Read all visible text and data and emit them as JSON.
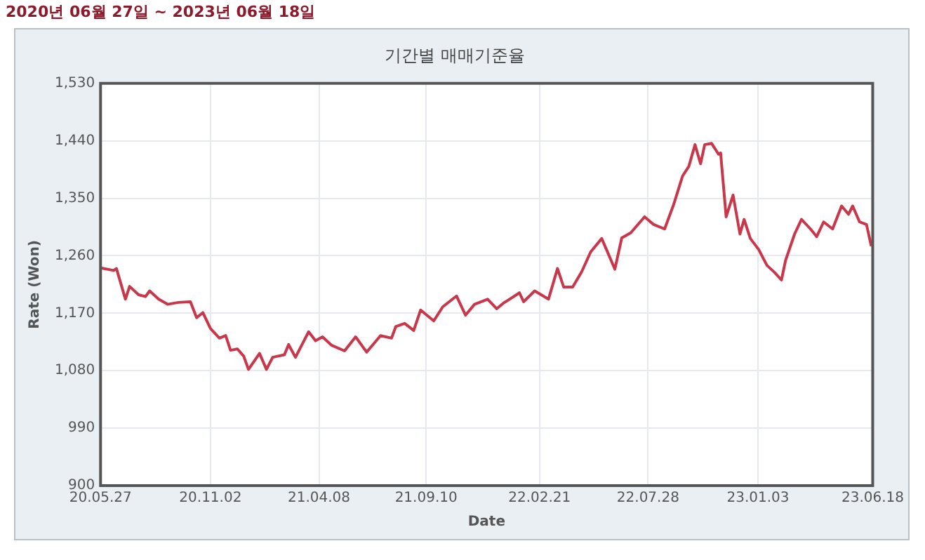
{
  "chart_data": {
    "type": "line",
    "title": "기간별 매매기준율",
    "subtitle": "2020년 06월 27일 ~ 2023년 06월 18일",
    "xlabel": "Date",
    "ylabel": "Rate (Won)",
    "xlim": [
      "2020-05-27",
      "2023-06-18"
    ],
    "xticks": [
      {
        "value": "2020-05-27",
        "label": "20.05.27"
      },
      {
        "value": "2020-11-02",
        "label": "20.11.02"
      },
      {
        "value": "2021-04-08",
        "label": "21.04.08"
      },
      {
        "value": "2021-09-10",
        "label": "21.09.10"
      },
      {
        "value": "2022-02-21",
        "label": "22.02.21"
      },
      {
        "value": "2022-07-28",
        "label": "22.07.28"
      },
      {
        "value": "2023-01-03",
        "label": "23.01.03"
      },
      {
        "value": "2023-06-18",
        "label": "23.06.18"
      }
    ],
    "ylim": [
      900,
      1530
    ],
    "yticks": [
      {
        "value": 900,
        "label": "900"
      },
      {
        "value": 990,
        "label": "990"
      },
      {
        "value": 1080,
        "label": "1,080"
      },
      {
        "value": 1170,
        "label": "1,170"
      },
      {
        "value": 1260,
        "label": "1,260"
      },
      {
        "value": 1350,
        "label": "1,350"
      },
      {
        "value": 1440,
        "label": "1,440"
      },
      {
        "value": 1530,
        "label": "1,530"
      }
    ],
    "grid": true,
    "marker": "none",
    "line_style": "solid",
    "series": [
      {
        "color": "#c8374a",
        "x": [
          "2020-05-27",
          "2020-06-15",
          "2020-06-19",
          "2020-07-02",
          "2020-07-08",
          "2020-07-21",
          "2020-07-31",
          "2020-08-06",
          "2020-08-19",
          "2020-09-01",
          "2020-09-17",
          "2020-10-04",
          "2020-10-13",
          "2020-10-22",
          "2020-11-02",
          "2020-11-15",
          "2020-11-24",
          "2020-12-01",
          "2020-12-11",
          "2020-12-20",
          "2020-12-27",
          "2021-01-12",
          "2021-01-22",
          "2021-01-31",
          "2021-02-17",
          "2021-02-23",
          "2021-03-05",
          "2021-03-14",
          "2021-03-24",
          "2021-04-03",
          "2021-04-13",
          "2021-04-26",
          "2021-05-15",
          "2021-05-31",
          "2021-06-16",
          "2021-07-06",
          "2021-07-22",
          "2021-07-28",
          "2021-08-10",
          "2021-08-23",
          "2021-09-02",
          "2021-09-21",
          "2021-10-04",
          "2021-10-24",
          "2021-11-06",
          "2021-11-19",
          "2021-12-08",
          "2021-12-21",
          "2021-12-31",
          "2022-01-06",
          "2022-01-23",
          "2022-01-29",
          "2022-02-14",
          "2022-03-06",
          "2022-03-19",
          "2022-03-28",
          "2022-04-10",
          "2022-04-23",
          "2022-05-06",
          "2022-05-22",
          "2022-06-10",
          "2022-06-20",
          "2022-07-03",
          "2022-07-23",
          "2022-08-05",
          "2022-08-21",
          "2022-09-03",
          "2022-09-16",
          "2022-09-25",
          "2022-10-04",
          "2022-10-12",
          "2022-10-18",
          "2022-10-28",
          "2022-11-07",
          "2022-11-10",
          "2022-11-18",
          "2022-11-28",
          "2022-12-08",
          "2022-12-14",
          "2022-12-23",
          "2023-01-04",
          "2023-01-16",
          "2023-01-27",
          "2023-02-06",
          "2023-02-12",
          "2023-02-25",
          "2023-03-07",
          "2023-03-20",
          "2023-03-29",
          "2023-04-08",
          "2023-04-21",
          "2023-05-04",
          "2023-05-14",
          "2023-05-20",
          "2023-05-30",
          "2023-06-09",
          "2023-06-16"
        ],
        "values": [
          1241,
          1237,
          1240,
          1192,
          1212,
          1199,
          1196,
          1205,
          1192,
          1184,
          1187,
          1188,
          1163,
          1171,
          1146,
          1131,
          1135,
          1112,
          1114,
          1103,
          1082,
          1107,
          1082,
          1101,
          1105,
          1121,
          1101,
          1120,
          1141,
          1127,
          1133,
          1120,
          1111,
          1133,
          1109,
          1135,
          1131,
          1149,
          1154,
          1143,
          1175,
          1158,
          1180,
          1197,
          1167,
          1184,
          1192,
          1177,
          1186,
          1190,
          1202,
          1188,
          1205,
          1192,
          1240,
          1211,
          1211,
          1235,
          1266,
          1287,
          1239,
          1288,
          1296,
          1321,
          1309,
          1302,
          1340,
          1385,
          1400,
          1434,
          1404,
          1434,
          1436,
          1419,
          1421,
          1321,
          1355,
          1294,
          1317,
          1287,
          1270,
          1245,
          1234,
          1222,
          1253,
          1294,
          1317,
          1302,
          1290,
          1313,
          1302,
          1338,
          1325,
          1338,
          1313,
          1309,
          1275
        ]
      }
    ]
  }
}
